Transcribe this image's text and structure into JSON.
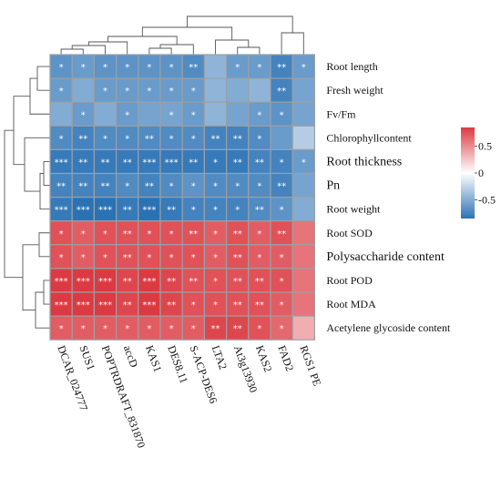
{
  "chart_data": {
    "type": "heatmap",
    "title": "",
    "rows": [
      "Root length",
      "Fresh weight",
      "Fv/Fm",
      "Chlorophyllcontent",
      "Root thickness",
      "Pn",
      "Root weight",
      "Root SOD",
      "Polysaccharide content",
      "Root POD",
      "Root MDA",
      "Acetylene glycoside content"
    ],
    "columns": [
      "DCAR_024777",
      "SUS1",
      "POPTRDRAFT_831870",
      "accD",
      "KAS1",
      "DES8.11",
      "S-ACP-DES6",
      "LTA2",
      "At3g13930",
      "KAS2",
      "FAD2",
      "RGS1 PE"
    ],
    "values": [
      [
        -0.65,
        -0.6,
        -0.65,
        -0.65,
        -0.65,
        -0.65,
        -0.7,
        -0.45,
        -0.6,
        -0.6,
        -0.75,
        -0.6
      ],
      [
        -0.6,
        -0.5,
        -0.6,
        -0.6,
        -0.6,
        -0.6,
        -0.6,
        -0.45,
        -0.5,
        -0.45,
        -0.75,
        -0.55
      ],
      [
        -0.5,
        -0.6,
        -0.5,
        -0.6,
        -0.55,
        -0.55,
        -0.6,
        -0.45,
        -0.55,
        -0.6,
        -0.65,
        -0.55
      ],
      [
        -0.7,
        -0.75,
        -0.7,
        -0.7,
        -0.7,
        -0.7,
        -0.7,
        -0.75,
        -0.75,
        -0.7,
        -0.6,
        -0.3
      ],
      [
        -0.8,
        -0.8,
        -0.8,
        -0.8,
        -0.8,
        -0.8,
        -0.8,
        -0.8,
        -0.8,
        -0.75,
        -0.75,
        -0.6
      ],
      [
        -0.75,
        -0.75,
        -0.75,
        -0.7,
        -0.75,
        -0.7,
        -0.65,
        -0.7,
        -0.7,
        -0.7,
        -0.75,
        -0.55
      ],
      [
        -0.8,
        -0.85,
        -0.85,
        -0.8,
        -0.85,
        -0.8,
        -0.75,
        -0.75,
        -0.75,
        -0.7,
        -0.65,
        -0.5
      ],
      [
        0.75,
        0.7,
        0.75,
        0.75,
        0.75,
        0.75,
        0.75,
        0.7,
        0.75,
        0.7,
        0.75,
        0.6
      ],
      [
        0.75,
        0.7,
        0.75,
        0.75,
        0.75,
        0.75,
        0.75,
        0.7,
        0.75,
        0.7,
        0.7,
        0.6
      ],
      [
        0.85,
        0.85,
        0.85,
        0.8,
        0.85,
        0.8,
        0.75,
        0.75,
        0.75,
        0.75,
        0.75,
        0.6
      ],
      [
        0.85,
        0.85,
        0.85,
        0.8,
        0.85,
        0.8,
        0.75,
        0.75,
        0.75,
        0.75,
        0.7,
        0.6
      ],
      [
        0.7,
        0.7,
        0.7,
        0.7,
        0.7,
        0.7,
        0.7,
        0.8,
        0.8,
        0.75,
        0.65,
        0.35
      ]
    ],
    "significance": [
      [
        "*",
        "*",
        "*",
        "*",
        "*",
        "*",
        "**",
        "",
        "*",
        "*",
        "**",
        "*"
      ],
      [
        "*",
        "",
        "*",
        "*",
        "*",
        "*",
        "*",
        "",
        "",
        "",
        "**",
        ""
      ],
      [
        "",
        "*",
        "",
        "*",
        "",
        "*",
        "*",
        "",
        "",
        "*",
        "*",
        ""
      ],
      [
        "*",
        "**",
        "*",
        "*",
        "**",
        "*",
        "*",
        "**",
        "**",
        "*",
        "",
        ""
      ],
      [
        "***",
        "**",
        "**",
        "**",
        "***",
        "***",
        "**",
        "*",
        "**",
        "**",
        "*",
        "*"
      ],
      [
        "**",
        "**",
        "**",
        "*",
        "**",
        "*",
        "*",
        "*",
        "*",
        "*",
        "**",
        ""
      ],
      [
        "***",
        "***",
        "***",
        "**",
        "***",
        "**",
        "*",
        "*",
        "*",
        "**",
        "*",
        ""
      ],
      [
        "*",
        "*",
        "*",
        "**",
        "*",
        "*",
        "**",
        "*",
        "**",
        "*",
        "**",
        ""
      ],
      [
        "*",
        "*",
        "*",
        "**",
        "*",
        "*",
        "*",
        "*",
        "**",
        "*",
        "*",
        ""
      ],
      [
        "***",
        "***",
        "***",
        "**",
        "***",
        "**",
        "**",
        "*",
        "**",
        "**",
        "*",
        ""
      ],
      [
        "***",
        "***",
        "***",
        "**",
        "***",
        "**",
        "*",
        "*",
        "**",
        "**",
        "*",
        ""
      ],
      [
        "*",
        "*",
        "*",
        "*",
        "*",
        "*",
        "*",
        "**",
        "**",
        "*",
        "*",
        ""
      ]
    ],
    "emphasized_rows": [
      "Root thickness",
      "Pn",
      "Polysaccharide content"
    ],
    "color_scale": {
      "min": -0.85,
      "max": 0.85,
      "low_color": "#2b72b5",
      "mid_color": "#ffffff",
      "high_color": "#dc3a42",
      "ticks": [
        0.5,
        0,
        -0.5
      ],
      "tick_labels": [
        "0.5",
        "0",
        "-0.5"
      ]
    },
    "grid_color": "#9aa0a6",
    "row_dendrogram": true,
    "column_dendrogram": true,
    "legend_position": "right"
  }
}
